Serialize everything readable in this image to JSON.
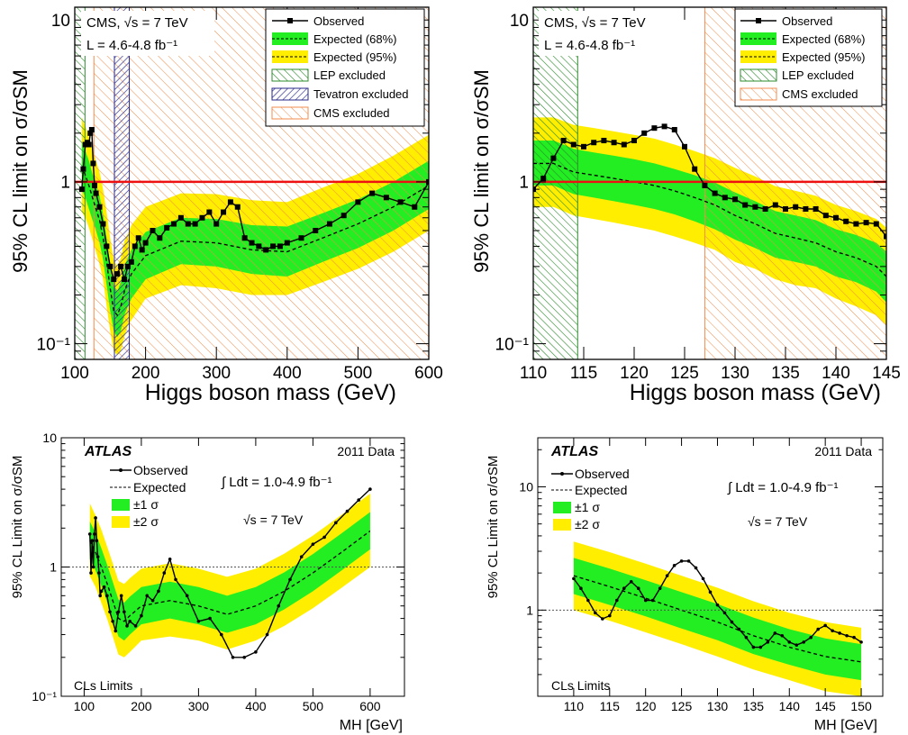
{
  "colors": {
    "band1": "#22ee22",
    "band2": "#ffee00",
    "observed": "#000000",
    "sm_line_cms": "#ee1111",
    "sm_line_atlas": "#555555",
    "lep_hatch": "#2e8b2e",
    "tevatron_hatch": "#2a2a8a",
    "cms_hatch": "#f08c4c"
  },
  "chart_data": [
    {
      "id": "cms-full",
      "type": "line",
      "scale_y": "log",
      "xlim": [
        100,
        600
      ],
      "ylim": [
        0.08,
        12
      ],
      "xticks": [
        "100",
        "200",
        "300",
        "400",
        "500",
        "600"
      ],
      "yticks": [
        "10⁻¹",
        "1",
        "10"
      ],
      "xlabel": "Higgs boson mass (GeV)",
      "ylabel": "95% CL limit on σ/σSM",
      "annotation": [
        "CMS, √s = 7 TeV",
        "L = 4.6-4.8 fb⁻¹"
      ],
      "legend": [
        "Observed",
        "Expected (68%)",
        "Expected (95%)",
        "LEP excluded",
        "Tevatron excluded",
        "CMS excluded"
      ],
      "legend_position": "top-right",
      "excluded": {
        "lep": [
          100,
          114.4
        ],
        "tevatron": [
          156,
          177
        ],
        "cms": [
          127,
          600
        ]
      },
      "reference_line": 1,
      "observed": {
        "x": [
          110,
          112,
          115,
          118,
          120,
          122,
          124,
          126,
          128,
          130,
          135,
          140,
          145,
          150,
          155,
          160,
          165,
          170,
          175,
          180,
          185,
          190,
          195,
          200,
          210,
          220,
          230,
          240,
          250,
          260,
          270,
          280,
          290,
          300,
          310,
          320,
          330,
          340,
          350,
          360,
          370,
          380,
          390,
          400,
          420,
          440,
          460,
          480,
          500,
          520,
          540,
          560,
          580,
          600
        ],
        "y": [
          0.9,
          1.2,
          1.7,
          1.75,
          1.7,
          2.0,
          2.1,
          1.3,
          0.95,
          0.85,
          0.7,
          0.55,
          0.4,
          0.3,
          0.25,
          0.27,
          0.3,
          0.25,
          0.3,
          0.32,
          0.4,
          0.45,
          0.38,
          0.42,
          0.5,
          0.45,
          0.52,
          0.55,
          0.6,
          0.55,
          0.55,
          0.6,
          0.65,
          0.55,
          0.65,
          0.75,
          0.7,
          0.45,
          0.42,
          0.4,
          0.38,
          0.4,
          0.4,
          0.42,
          0.45,
          0.5,
          0.55,
          0.62,
          0.75,
          0.85,
          0.8,
          0.75,
          0.7,
          1.0
        ]
      },
      "expected": {
        "x": [
          110,
          115,
          120,
          125,
          130,
          135,
          140,
          145,
          150,
          155,
          160,
          165,
          170,
          175,
          180,
          200,
          250,
          300,
          350,
          400,
          450,
          500,
          550,
          600
        ],
        "y": [
          1.25,
          1.1,
          0.95,
          0.8,
          0.68,
          0.58,
          0.45,
          0.32,
          0.22,
          0.16,
          0.15,
          0.17,
          0.21,
          0.24,
          0.27,
          0.35,
          0.43,
          0.42,
          0.38,
          0.37,
          0.45,
          0.55,
          0.7,
          0.95
        ]
      },
      "band1": {
        "lo": [
          0.9,
          0.8,
          0.68,
          0.58,
          0.5,
          0.42,
          0.33,
          0.23,
          0.16,
          0.12,
          0.11,
          0.12,
          0.15,
          0.17,
          0.19,
          0.25,
          0.31,
          0.3,
          0.27,
          0.26,
          0.32,
          0.39,
          0.5,
          0.68
        ],
        "hi": [
          1.75,
          1.55,
          1.35,
          1.12,
          0.95,
          0.82,
          0.63,
          0.45,
          0.31,
          0.23,
          0.21,
          0.24,
          0.3,
          0.34,
          0.38,
          0.49,
          0.6,
          0.59,
          0.54,
          0.53,
          0.64,
          0.78,
          1.0,
          1.35
        ]
      },
      "band2": {
        "lo": [
          0.65,
          0.6,
          0.52,
          0.44,
          0.37,
          0.31,
          0.25,
          0.17,
          0.12,
          0.09,
          0.085,
          0.09,
          0.11,
          0.13,
          0.14,
          0.19,
          0.23,
          0.22,
          0.2,
          0.2,
          0.24,
          0.29,
          0.37,
          0.5
        ],
        "hi": [
          2.5,
          2.2,
          1.9,
          1.6,
          1.35,
          1.15,
          0.9,
          0.65,
          0.45,
          0.33,
          0.3,
          0.34,
          0.43,
          0.48,
          0.54,
          0.7,
          0.85,
          0.84,
          0.77,
          0.75,
          0.92,
          1.12,
          1.45,
          1.95
        ]
      }
    },
    {
      "id": "cms-zoom",
      "type": "line",
      "scale_y": "log",
      "xlim": [
        110,
        145
      ],
      "ylim": [
        0.08,
        12
      ],
      "xticks": [
        "110",
        "115",
        "120",
        "125",
        "130",
        "135",
        "140",
        "145"
      ],
      "yticks": [
        "10⁻¹",
        "1",
        "10"
      ],
      "xlabel": "Higgs boson mass (GeV)",
      "ylabel": "95% CL limit on σ/σSM",
      "annotation": [
        "CMS, √s = 7 TeV",
        "L = 4.6-4.8 fb⁻¹"
      ],
      "legend": [
        "Observed",
        "Expected (68%)",
        "Expected (95%)",
        "LEP excluded",
        "CMS excluded"
      ],
      "legend_position": "top-right",
      "excluded": {
        "lep": [
          110,
          114.4
        ],
        "cms": [
          127,
          145
        ]
      },
      "reference_line": 1,
      "observed": {
        "x": [
          110,
          111,
          112,
          113,
          114,
          115,
          116,
          117,
          118,
          119,
          120,
          121,
          122,
          123,
          124,
          125,
          126,
          127,
          128,
          129,
          130,
          131,
          132,
          133,
          134,
          135,
          136,
          137,
          138,
          139,
          140,
          141,
          142,
          143,
          144,
          145
        ],
        "y": [
          0.9,
          1.05,
          1.4,
          1.8,
          1.7,
          1.65,
          1.75,
          1.8,
          1.75,
          1.7,
          1.8,
          2.0,
          2.15,
          2.2,
          2.1,
          1.65,
          1.2,
          0.95,
          0.85,
          0.8,
          0.78,
          0.72,
          0.7,
          0.68,
          0.72,
          0.68,
          0.7,
          0.68,
          0.68,
          0.62,
          0.6,
          0.57,
          0.55,
          0.56,
          0.55,
          0.46
        ]
      },
      "expected": {
        "x": [
          110,
          112,
          114,
          116,
          118,
          120,
          122,
          124,
          126,
          128,
          130,
          132,
          134,
          136,
          138,
          140,
          142,
          144,
          145
        ],
        "y": [
          1.3,
          1.3,
          1.15,
          1.1,
          1.05,
          1.0,
          0.95,
          0.88,
          0.8,
          0.72,
          0.62,
          0.55,
          0.48,
          0.45,
          0.42,
          0.37,
          0.34,
          0.3,
          0.26
        ]
      },
      "band1": {
        "lo": [
          0.95,
          0.95,
          0.84,
          0.8,
          0.76,
          0.72,
          0.68,
          0.63,
          0.57,
          0.51,
          0.44,
          0.39,
          0.34,
          0.32,
          0.3,
          0.26,
          0.24,
          0.21,
          0.18
        ],
        "hi": [
          1.8,
          1.8,
          1.6,
          1.52,
          1.45,
          1.38,
          1.3,
          1.2,
          1.1,
          0.99,
          0.86,
          0.76,
          0.66,
          0.62,
          0.58,
          0.51,
          0.47,
          0.42,
          0.37
        ]
      },
      "band2": {
        "lo": [
          0.7,
          0.7,
          0.62,
          0.59,
          0.56,
          0.53,
          0.5,
          0.46,
          0.42,
          0.38,
          0.32,
          0.29,
          0.25,
          0.23,
          0.22,
          0.19,
          0.17,
          0.15,
          0.13
        ],
        "hi": [
          2.5,
          2.5,
          2.25,
          2.15,
          2.05,
          1.95,
          1.85,
          1.7,
          1.55,
          1.4,
          1.22,
          1.08,
          0.94,
          0.88,
          0.82,
          0.72,
          0.66,
          0.59,
          0.52
        ]
      }
    },
    {
      "id": "atlas-full",
      "type": "line",
      "scale_y": "log",
      "xlim": [
        60,
        660
      ],
      "ylim": [
        0.1,
        10
      ],
      "xticks": [
        "100",
        "200",
        "300",
        "400",
        "500",
        "600"
      ],
      "yticks": [
        "10⁻¹",
        "1",
        "10"
      ],
      "xlabel": "MH [GeV]",
      "ylabel": "95% CL Limit on σ/σSM",
      "annotation": [
        "ATLAS",
        "2011 Data",
        "∫ Ldt = 1.0-4.9 fb⁻¹",
        "√s = 7 TeV",
        "CLs Limits"
      ],
      "legend": [
        "Observed",
        "Expected",
        "±1 σ",
        "±2 σ"
      ],
      "legend_position": "top-left",
      "reference_line": 1,
      "observed": {
        "x": [
          110,
          112,
          114,
          116,
          118,
          120,
          122,
          124,
          126,
          128,
          130,
          135,
          140,
          145,
          150,
          155,
          160,
          165,
          170,
          175,
          180,
          190,
          200,
          210,
          220,
          230,
          240,
          250,
          260,
          280,
          300,
          320,
          340,
          360,
          380,
          400,
          420,
          440,
          460,
          480,
          500,
          520,
          540,
          560,
          580,
          600
        ],
        "y": [
          1.8,
          0.9,
          1.6,
          1.0,
          1.8,
          2.4,
          1.6,
          1.2,
          0.9,
          0.6,
          0.65,
          0.7,
          0.6,
          0.45,
          0.38,
          0.32,
          0.45,
          0.6,
          0.45,
          0.35,
          0.38,
          0.35,
          0.42,
          0.6,
          0.55,
          0.65,
          0.9,
          1.15,
          0.8,
          0.6,
          0.38,
          0.4,
          0.3,
          0.2,
          0.2,
          0.22,
          0.3,
          0.5,
          0.8,
          1.2,
          1.5,
          1.7,
          2.2,
          2.7,
          3.3,
          4.0
        ]
      },
      "expected": {
        "x": [
          110,
          120,
          130,
          140,
          150,
          160,
          170,
          180,
          200,
          250,
          300,
          350,
          400,
          450,
          500,
          550,
          600
        ],
        "y": [
          1.6,
          1.3,
          1.0,
          0.75,
          0.55,
          0.4,
          0.38,
          0.42,
          0.5,
          0.55,
          0.5,
          0.43,
          0.5,
          0.65,
          0.9,
          1.3,
          1.9
        ]
      },
      "band1": {
        "lo": [
          1.15,
          0.94,
          0.72,
          0.54,
          0.4,
          0.29,
          0.27,
          0.3,
          0.36,
          0.4,
          0.36,
          0.31,
          0.36,
          0.47,
          0.65,
          0.94,
          1.37
        ],
        "hi": [
          2.25,
          1.82,
          1.4,
          1.05,
          0.77,
          0.56,
          0.53,
          0.59,
          0.7,
          0.77,
          0.7,
          0.6,
          0.7,
          0.91,
          1.26,
          1.82,
          2.66
        ]
      },
      "band2": {
        "lo": [
          0.85,
          0.7,
          0.53,
          0.4,
          0.29,
          0.21,
          0.2,
          0.22,
          0.27,
          0.29,
          0.27,
          0.23,
          0.27,
          0.35,
          0.48,
          0.69,
          1.0
        ],
        "hi": [
          3.1,
          2.5,
          1.95,
          1.45,
          1.07,
          0.78,
          0.74,
          0.82,
          0.97,
          1.07,
          0.97,
          0.84,
          0.97,
          1.27,
          1.75,
          2.53,
          3.7
        ]
      }
    },
    {
      "id": "atlas-zoom",
      "type": "line",
      "scale_y": "log",
      "xlim": [
        105,
        153
      ],
      "ylim": [
        0.2,
        25
      ],
      "xticks": [
        "110",
        "115",
        "120",
        "125",
        "130",
        "135",
        "140",
        "145",
        "150"
      ],
      "yticks": [
        "1",
        "10"
      ],
      "xlabel": "MH [GeV]",
      "ylabel": "95% CL Limit on σ/σSM",
      "annotation": [
        "ATLAS",
        "2011 Data",
        "∫ Ldt = 1.0-4.9 fb⁻¹",
        "√s = 7 TeV",
        "CLs Limits"
      ],
      "legend": [
        "Observed",
        "Expected",
        "±1 σ",
        "±2 σ"
      ],
      "legend_position": "top-left",
      "reference_line": 1,
      "observed": {
        "x": [
          110,
          111,
          112,
          113,
          114,
          115,
          116,
          117,
          118,
          119,
          120,
          121,
          122,
          123,
          124,
          125,
          126,
          127,
          128,
          129,
          130,
          131,
          132,
          133,
          134,
          135,
          136,
          137,
          138,
          139,
          140,
          141,
          142,
          143,
          144,
          145,
          146,
          147,
          148,
          149,
          150
        ],
        "y": [
          1.8,
          1.5,
          1.2,
          0.95,
          0.85,
          0.9,
          1.2,
          1.5,
          1.7,
          1.5,
          1.2,
          1.2,
          1.5,
          1.9,
          2.3,
          2.5,
          2.5,
          2.2,
          1.8,
          1.4,
          1.1,
          0.95,
          0.8,
          0.7,
          0.6,
          0.5,
          0.5,
          0.55,
          0.65,
          0.62,
          0.55,
          0.52,
          0.55,
          0.6,
          0.7,
          0.75,
          0.68,
          0.65,
          0.62,
          0.6,
          0.55
        ]
      },
      "expected": {
        "x": [
          110,
          115,
          120,
          125,
          130,
          135,
          140,
          145,
          150
        ],
        "y": [
          1.9,
          1.55,
          1.25,
          1.0,
          0.8,
          0.62,
          0.5,
          0.42,
          0.38
        ]
      },
      "band1": {
        "lo": [
          1.35,
          1.1,
          0.89,
          0.71,
          0.57,
          0.44,
          0.36,
          0.3,
          0.27
        ],
        "hi": [
          2.65,
          2.17,
          1.75,
          1.4,
          1.12,
          0.87,
          0.7,
          0.59,
          0.53
        ]
      },
      "band2": {
        "lo": [
          1.0,
          0.82,
          0.66,
          0.53,
          0.42,
          0.33,
          0.27,
          0.22,
          0.2
        ],
        "hi": [
          3.6,
          2.95,
          2.38,
          1.9,
          1.52,
          1.18,
          0.95,
          0.8,
          0.72
        ]
      }
    }
  ]
}
